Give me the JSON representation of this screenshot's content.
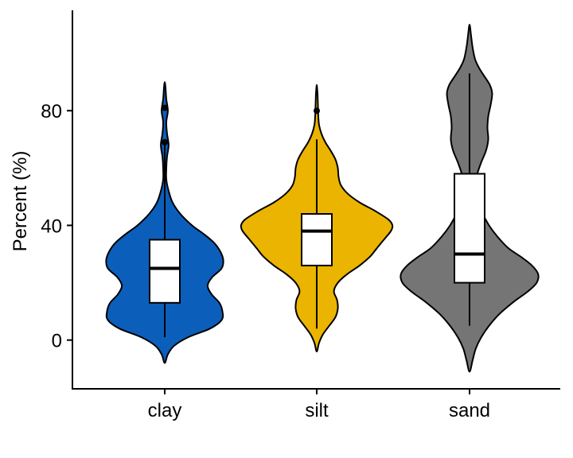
{
  "chart_data": {
    "type": "violin",
    "title": "",
    "xlabel": "",
    "ylabel": "Percent (%)",
    "categories": [
      "clay",
      "silt",
      "sand"
    ],
    "ylim": [
      -17,
      115
    ],
    "yticks": [
      0,
      40,
      80
    ],
    "grid": false,
    "legend": "none",
    "series": [
      {
        "category": "clay",
        "color": "#0C5EBB",
        "box": {
          "q1": 13,
          "median": 25,
          "q3": 35,
          "whisker_low": 1,
          "whisker_high": 69
        },
        "outliers": [
          69,
          81
        ],
        "density": [
          [
            -8,
            0
          ],
          [
            -5,
            0.04
          ],
          [
            -2,
            0.12
          ],
          [
            1,
            0.3
          ],
          [
            4,
            0.58
          ],
          [
            7,
            0.73
          ],
          [
            10,
            0.74
          ],
          [
            13,
            0.7
          ],
          [
            16,
            0.6
          ],
          [
            19,
            0.55
          ],
          [
            22,
            0.61
          ],
          [
            25,
            0.73
          ],
          [
            28,
            0.75
          ],
          [
            31,
            0.71
          ],
          [
            34,
            0.63
          ],
          [
            37,
            0.5
          ],
          [
            40,
            0.35
          ],
          [
            44,
            0.2
          ],
          [
            48,
            0.1
          ],
          [
            52,
            0.05
          ],
          [
            56,
            0.02
          ],
          [
            60,
            0.02
          ],
          [
            64,
            0.03
          ],
          [
            68,
            0.05
          ],
          [
            72,
            0.03
          ],
          [
            76,
            0.02
          ],
          [
            80,
            0.04
          ],
          [
            84,
            0.02
          ],
          [
            88,
            0.01
          ],
          [
            90,
            0
          ]
        ]
      },
      {
        "category": "silt",
        "color": "#EAB400",
        "box": {
          "q1": 26,
          "median": 38,
          "q3": 44,
          "whisker_low": 4,
          "whisker_high": 70
        },
        "outliers": [
          80
        ],
        "density": [
          [
            -4,
            0
          ],
          [
            -1,
            0.03
          ],
          [
            2,
            0.08
          ],
          [
            5,
            0.16
          ],
          [
            8,
            0.24
          ],
          [
            11,
            0.27
          ],
          [
            14,
            0.26
          ],
          [
            17,
            0.22
          ],
          [
            20,
            0.27
          ],
          [
            23,
            0.39
          ],
          [
            26,
            0.55
          ],
          [
            29,
            0.68
          ],
          [
            32,
            0.77
          ],
          [
            35,
            0.86
          ],
          [
            38,
            0.95
          ],
          [
            40,
            0.97
          ],
          [
            42,
            0.92
          ],
          [
            45,
            0.75
          ],
          [
            48,
            0.55
          ],
          [
            51,
            0.4
          ],
          [
            54,
            0.31
          ],
          [
            57,
            0.28
          ],
          [
            60,
            0.27
          ],
          [
            63,
            0.24
          ],
          [
            66,
            0.18
          ],
          [
            69,
            0.11
          ],
          [
            72,
            0.06
          ],
          [
            75,
            0.03
          ],
          [
            78,
            0.02
          ],
          [
            82,
            0.015
          ],
          [
            86,
            0.01
          ],
          [
            89,
            0
          ]
        ]
      },
      {
        "category": "sand",
        "color": "#757575",
        "box": {
          "q1": 20,
          "median": 30,
          "q3": 58,
          "whisker_low": 5,
          "whisker_high": 93
        },
        "outliers": [],
        "density": [
          [
            -11,
            0
          ],
          [
            -7,
            0.04
          ],
          [
            -3,
            0.08
          ],
          [
            1,
            0.15
          ],
          [
            5,
            0.25
          ],
          [
            9,
            0.38
          ],
          [
            13,
            0.55
          ],
          [
            17,
            0.75
          ],
          [
            20,
            0.86
          ],
          [
            23,
            0.88
          ],
          [
            26,
            0.8
          ],
          [
            29,
            0.66
          ],
          [
            32,
            0.5
          ],
          [
            36,
            0.36
          ],
          [
            40,
            0.25
          ],
          [
            44,
            0.17
          ],
          [
            48,
            0.12
          ],
          [
            52,
            0.09
          ],
          [
            55,
            0.08
          ],
          [
            58,
            0.1
          ],
          [
            62,
            0.15
          ],
          [
            66,
            0.21
          ],
          [
            70,
            0.24
          ],
          [
            74,
            0.23
          ],
          [
            78,
            0.24
          ],
          [
            82,
            0.27
          ],
          [
            86,
            0.29
          ],
          [
            89,
            0.26
          ],
          [
            92,
            0.19
          ],
          [
            95,
            0.12
          ],
          [
            98,
            0.07
          ],
          [
            102,
            0.04
          ],
          [
            106,
            0.02
          ],
          [
            110,
            0
          ]
        ]
      }
    ]
  }
}
